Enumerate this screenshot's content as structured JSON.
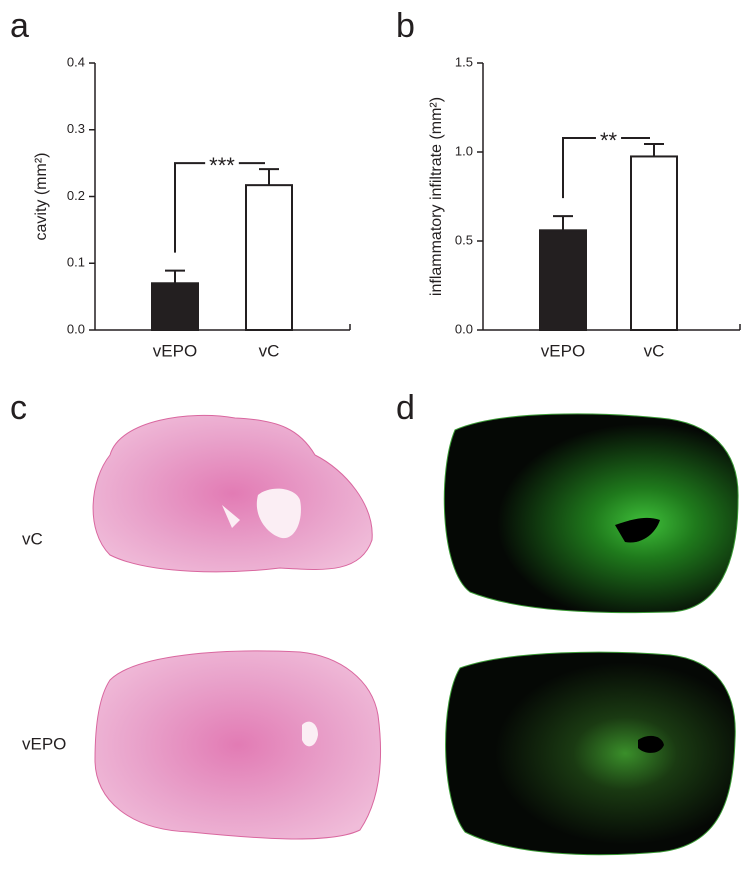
{
  "chart_data": [
    {
      "type": "bar",
      "panel": "a",
      "ylabel": "cavity (mm²)",
      "categories": [
        "vEPO",
        "vC"
      ],
      "values": [
        0.07,
        0.217
      ],
      "errors": [
        0.019,
        0.024
      ],
      "colors": [
        "#231f20",
        "#ffffff"
      ],
      "ylim": [
        0,
        0.4
      ],
      "yticks": [
        {
          "value": 0,
          "label": "0.0"
        },
        0.1,
        0.2,
        0.3,
        0.4
      ],
      "significance": "***"
    },
    {
      "type": "bar",
      "panel": "b",
      "ylabel": "inflammatory infiltrate (mm²)",
      "categories": [
        "vEPO",
        "vC"
      ],
      "values": [
        0.56,
        0.975
      ],
      "errors": [
        0.08,
        0.07
      ],
      "colors": [
        "#231f20",
        "#ffffff"
      ],
      "ylim": [
        0,
        1.5
      ],
      "yticks": [
        {
          "value": 0,
          "label": "0.0"
        },
        0.5,
        {
          "value": 1,
          "label": "1.0"
        },
        1.5
      ],
      "significance": "**"
    }
  ],
  "images": {
    "panels": [
      {
        "label": "c"
      },
      {
        "label": "d"
      }
    ],
    "rows": [
      "vC",
      "vEPO"
    ]
  }
}
